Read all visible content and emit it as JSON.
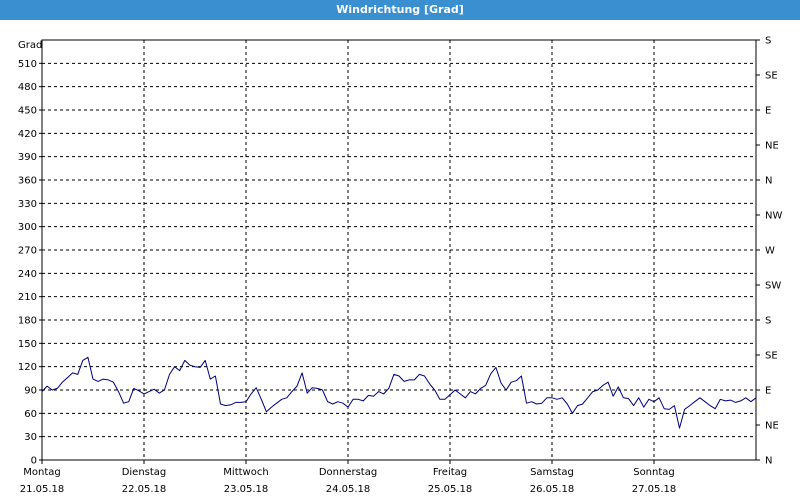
{
  "window": {
    "title": "Windrichtung [Grad]"
  },
  "chart_data": {
    "type": "line",
    "title": "Windrichtung [Grad]",
    "ylabel": "Grad",
    "ylim": [
      0,
      540
    ],
    "y_ticks": [
      0,
      30,
      60,
      90,
      120,
      150,
      180,
      210,
      240,
      270,
      300,
      330,
      360,
      390,
      420,
      450,
      480,
      510
    ],
    "y2_ticks": [
      {
        "value": 0,
        "label": "N"
      },
      {
        "value": 45,
        "label": "NE"
      },
      {
        "value": 90,
        "label": "E"
      },
      {
        "value": 135,
        "label": "SE"
      },
      {
        "value": 180,
        "label": "S"
      },
      {
        "value": 225,
        "label": "SW"
      },
      {
        "value": 270,
        "label": "W"
      },
      {
        "value": 315,
        "label": "NW"
      },
      {
        "value": 360,
        "label": "N"
      },
      {
        "value": 405,
        "label": "NE"
      },
      {
        "value": 450,
        "label": "E"
      },
      {
        "value": 495,
        "label": "SE"
      },
      {
        "value": 540,
        "label": "S"
      }
    ],
    "xlim": [
      0,
      7
    ],
    "x_ticks": [
      {
        "value": 0,
        "day": "Montag",
        "date": "21.05.18"
      },
      {
        "value": 1,
        "day": "Dienstag",
        "date": "22.05.18"
      },
      {
        "value": 2,
        "day": "Mittwoch",
        "date": "23.05.18"
      },
      {
        "value": 3,
        "day": "Donnerstag",
        "date": "24.05.18"
      },
      {
        "value": 4,
        "day": "Freitag",
        "date": "25.05.18"
      },
      {
        "value": 5,
        "day": "Samstag",
        "date": "26.05.18"
      },
      {
        "value": 6,
        "day": "Sonntag",
        "date": "27.05.18"
      }
    ],
    "grid": true,
    "series": [
      {
        "color": "#000080",
        "x": [
          0.0,
          0.05,
          0.1,
          0.15,
          0.2,
          0.25,
          0.3,
          0.35,
          0.4,
          0.45,
          0.5,
          0.55,
          0.6,
          0.65,
          0.7,
          0.75,
          0.8,
          0.85,
          0.9,
          0.95,
          1.0,
          1.05,
          1.1,
          1.15,
          1.2,
          1.25,
          1.3,
          1.35,
          1.4,
          1.45,
          1.5,
          1.55,
          1.6,
          1.65,
          1.7,
          1.75,
          1.8,
          1.85,
          1.9,
          1.95,
          2.0,
          2.05,
          2.1,
          2.15,
          2.2,
          2.25,
          2.3,
          2.35,
          2.4,
          2.45,
          2.5,
          2.55,
          2.6,
          2.65,
          2.7,
          2.75,
          2.8,
          2.85,
          2.9,
          2.95,
          3.0,
          3.05,
          3.1,
          3.15,
          3.2,
          3.25,
          3.3,
          3.35,
          3.4,
          3.45,
          3.5,
          3.55,
          3.6,
          3.65,
          3.7,
          3.75,
          3.8,
          3.85,
          3.9,
          3.95,
          4.0,
          4.05,
          4.1,
          4.15,
          4.2,
          4.25,
          4.3,
          4.35,
          4.4,
          4.45,
          4.5,
          4.55,
          4.6,
          4.65,
          4.7,
          4.75,
          4.8,
          4.85,
          4.9,
          4.95,
          5.0,
          5.05,
          5.1,
          5.15,
          5.2,
          5.25,
          5.3,
          5.35,
          5.4,
          5.45,
          5.5,
          5.55,
          5.6,
          5.65,
          5.7,
          5.75,
          5.8,
          5.85,
          5.9,
          5.95,
          6.0,
          6.05,
          6.1,
          6.15,
          6.2,
          6.25,
          6.3,
          6.35,
          6.4,
          6.45,
          6.5,
          6.55,
          6.6,
          6.65,
          6.7,
          6.75,
          6.8,
          6.85,
          6.9,
          6.95,
          7.0
        ],
        "values": [
          88,
          95,
          90,
          92,
          100,
          106,
          112,
          110,
          128,
          132,
          104,
          101,
          104,
          103,
          100,
          88,
          73,
          75,
          92,
          89,
          85,
          88,
          91,
          86,
          90,
          110,
          120,
          115,
          128,
          122,
          120,
          119,
          128,
          104,
          108,
          72,
          70,
          71,
          74,
          74,
          75,
          85,
          93,
          78,
          62,
          68,
          73,
          78,
          80,
          88,
          95,
          112,
          86,
          93,
          92,
          90,
          75,
          72,
          75,
          73,
          68,
          78,
          78,
          76,
          83,
          82,
          88,
          85,
          92,
          110,
          108,
          101,
          103,
          103,
          110,
          108,
          98,
          90,
          78,
          78,
          84,
          90,
          85,
          80,
          88,
          85,
          92,
          96,
          111,
          119,
          99,
          90,
          100,
          102,
          108,
          73,
          75,
          72,
          73,
          80,
          80,
          78,
          80,
          72,
          60,
          70,
          72,
          80,
          88,
          90,
          96,
          100,
          82,
          94,
          80,
          79,
          70,
          80,
          68,
          78,
          75,
          80,
          66,
          65,
          70,
          41,
          65,
          70,
          75,
          80,
          75,
          70,
          66,
          78,
          76,
          77,
          74,
          76,
          80,
          75,
          80
        ]
      }
    ]
  }
}
